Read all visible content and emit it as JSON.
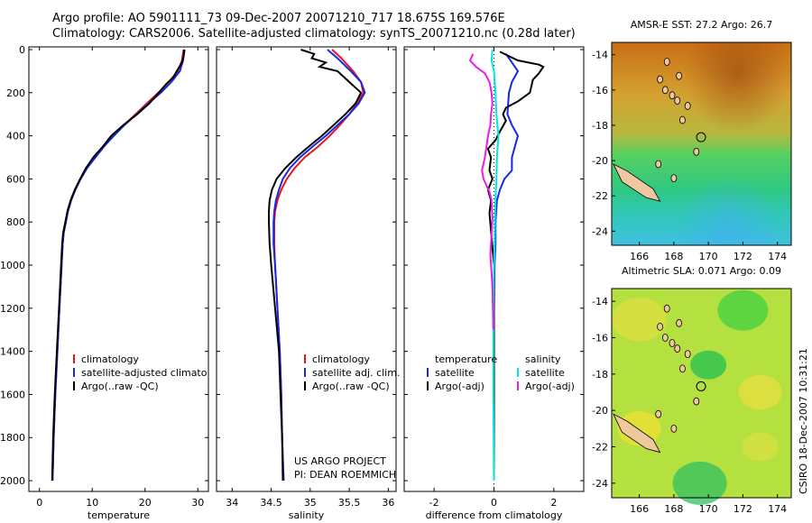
{
  "header": {
    "line1": "Argo profile: AO 5901111_73 09-Dec-2007 20071210_717 18.675S 169.576E",
    "line2": "Climatology: CARS2006. Satellite-adjusted climatology: synTS_20071210.nc (0.28d later)"
  },
  "timestamp": "CSIRO 18-Dec-2007 10:31:21",
  "project": {
    "line1": "US ARGO PROJECT",
    "line2": "PI: DEAN ROEMMICH"
  },
  "colors": {
    "red": "#e8141c",
    "blue": "#1428e6",
    "black": "#000000",
    "cyan": "#00e6e6",
    "magenta": "#e61ee6"
  },
  "chart_data": [
    {
      "type": "line",
      "xlabel": "temperature",
      "xlim": [
        -2,
        32
      ],
      "ylim": [
        2050,
        0
      ],
      "xticks": [
        0,
        10,
        20,
        30
      ],
      "yticks": [
        0,
        200,
        400,
        600,
        800,
        1000,
        1200,
        1400,
        1600,
        1800,
        2000
      ],
      "legend": [
        "climatology",
        "satellite-adjusted climatology",
        "Argo(..raw -QC)"
      ],
      "series": [
        {
          "name": "climatology",
          "color": "red",
          "points": [
            [
              27.3,
              0
            ],
            [
              27.0,
              50
            ],
            [
              26.2,
              100
            ],
            [
              24.5,
              150
            ],
            [
              22.5,
              200
            ],
            [
              20.3,
              250
            ],
            [
              18.2,
              300
            ],
            [
              16.0,
              350
            ],
            [
              14.0,
              400
            ],
            [
              12.2,
              450
            ],
            [
              10.6,
              500
            ],
            [
              9.0,
              550
            ],
            [
              7.8,
              600
            ],
            [
              6.8,
              650
            ],
            [
              6.0,
              700
            ],
            [
              5.4,
              750
            ],
            [
              5.0,
              800
            ],
            [
              4.6,
              850
            ],
            [
              4.4,
              900
            ],
            [
              4.2,
              1000
            ],
            [
              3.8,
              1200
            ],
            [
              3.4,
              1400
            ],
            [
              3.0,
              1600
            ],
            [
              2.7,
              1800
            ],
            [
              2.5,
              2000
            ]
          ]
        },
        {
          "name": "satellite-adjusted climatology",
          "color": "blue",
          "points": [
            [
              27.5,
              0
            ],
            [
              27.2,
              50
            ],
            [
              26.6,
              100
            ],
            [
              25.0,
              150
            ],
            [
              23.0,
              200
            ],
            [
              20.6,
              250
            ],
            [
              18.4,
              300
            ],
            [
              16.1,
              350
            ],
            [
              14.1,
              400
            ],
            [
              12.2,
              450
            ],
            [
              10.6,
              500
            ],
            [
              9.0,
              550
            ],
            [
              7.8,
              600
            ],
            [
              6.8,
              650
            ],
            [
              6.0,
              700
            ],
            [
              5.4,
              750
            ],
            [
              5.0,
              800
            ],
            [
              4.6,
              850
            ],
            [
              4.4,
              900
            ],
            [
              4.2,
              1000
            ],
            [
              3.8,
              1200
            ],
            [
              3.4,
              1400
            ],
            [
              3.0,
              1600
            ],
            [
              2.7,
              1800
            ],
            [
              2.5,
              2000
            ]
          ]
        },
        {
          "name": "Argo(..raw -QC)",
          "color": "black",
          "points": [
            [
              27.4,
              0
            ],
            [
              27.3,
              30
            ],
            [
              27.0,
              60
            ],
            [
              26.0,
              100
            ],
            [
              25.3,
              130
            ],
            [
              24.0,
              160
            ],
            [
              22.6,
              200
            ],
            [
              20.8,
              250
            ],
            [
              18.5,
              300
            ],
            [
              15.9,
              350
            ],
            [
              13.6,
              400
            ],
            [
              12.0,
              450
            ],
            [
              10.2,
              500
            ],
            [
              8.8,
              550
            ],
            [
              7.7,
              600
            ],
            [
              6.7,
              650
            ],
            [
              5.9,
              700
            ],
            [
              5.3,
              750
            ],
            [
              4.9,
              800
            ],
            [
              4.5,
              850
            ],
            [
              4.3,
              900
            ],
            [
              4.1,
              1000
            ],
            [
              3.7,
              1200
            ],
            [
              3.3,
              1400
            ],
            [
              2.9,
              1600
            ],
            [
              2.6,
              1800
            ],
            [
              2.4,
              2000
            ]
          ]
        }
      ]
    },
    {
      "type": "line",
      "xlabel": "salinity",
      "xlim": [
        33.8,
        36.1
      ],
      "ylim": [
        2050,
        0
      ],
      "xticks": [
        34,
        34.5,
        35,
        35.5,
        36
      ],
      "yticks": [
        0,
        200,
        400,
        600,
        800,
        1000,
        1200,
        1400,
        1600,
        1800,
        2000
      ],
      "legend": [
        "climatology",
        "satellite adj. clim.",
        "Argo(..raw -QC)"
      ],
      "series": [
        {
          "name": "climatology",
          "color": "red",
          "points": [
            [
              35.28,
              0
            ],
            [
              35.4,
              40
            ],
            [
              35.55,
              100
            ],
            [
              35.65,
              150
            ],
            [
              35.68,
              200
            ],
            [
              35.6,
              250
            ],
            [
              35.5,
              300
            ],
            [
              35.38,
              350
            ],
            [
              35.25,
              400
            ],
            [
              35.1,
              450
            ],
            [
              34.93,
              500
            ],
            [
              34.8,
              550
            ],
            [
              34.7,
              600
            ],
            [
              34.63,
              650
            ],
            [
              34.58,
              700
            ],
            [
              34.55,
              750
            ],
            [
              34.54,
              800
            ],
            [
              34.54,
              900
            ],
            [
              34.55,
              1000
            ],
            [
              34.58,
              1200
            ],
            [
              34.61,
              1400
            ],
            [
              34.63,
              1600
            ],
            [
              34.64,
              1800
            ],
            [
              34.66,
              2000
            ]
          ]
        },
        {
          "name": "satellite adj. clim.",
          "color": "blue",
          "points": [
            [
              35.22,
              0
            ],
            [
              35.35,
              40
            ],
            [
              35.52,
              100
            ],
            [
              35.65,
              150
            ],
            [
              35.7,
              200
            ],
            [
              35.62,
              250
            ],
            [
              35.5,
              300
            ],
            [
              35.35,
              350
            ],
            [
              35.2,
              400
            ],
            [
              35.03,
              450
            ],
            [
              34.87,
              500
            ],
            [
              34.74,
              550
            ],
            [
              34.65,
              600
            ],
            [
              34.6,
              650
            ],
            [
              34.56,
              700
            ],
            [
              34.54,
              750
            ],
            [
              34.53,
              800
            ],
            [
              34.53,
              900
            ],
            [
              34.55,
              1000
            ],
            [
              34.58,
              1200
            ],
            [
              34.61,
              1400
            ],
            [
              34.63,
              1600
            ],
            [
              34.64,
              1800
            ],
            [
              34.66,
              2000
            ]
          ]
        },
        {
          "name": "Argo(..raw -QC)",
          "color": "black",
          "points": [
            [
              34.88,
              0
            ],
            [
              35.05,
              20
            ],
            [
              35.02,
              40
            ],
            [
              35.2,
              60
            ],
            [
              35.12,
              80
            ],
            [
              35.35,
              100
            ],
            [
              35.5,
              150
            ],
            [
              35.65,
              200
            ],
            [
              35.58,
              250
            ],
            [
              35.45,
              300
            ],
            [
              35.3,
              350
            ],
            [
              35.15,
              400
            ],
            [
              34.98,
              450
            ],
            [
              34.82,
              500
            ],
            [
              34.68,
              550
            ],
            [
              34.57,
              600
            ],
            [
              34.51,
              650
            ],
            [
              34.48,
              700
            ],
            [
              34.47,
              750
            ],
            [
              34.47,
              800
            ],
            [
              34.48,
              900
            ],
            [
              34.5,
              1000
            ],
            [
              34.55,
              1200
            ],
            [
              34.6,
              1400
            ],
            [
              34.62,
              1600
            ],
            [
              34.64,
              1800
            ],
            [
              34.65,
              2000
            ]
          ]
        }
      ]
    },
    {
      "type": "line",
      "xlabel": "difference from climatology",
      "xlim": [
        -3,
        3
      ],
      "ylim": [
        2050,
        0
      ],
      "xticks": [
        -2,
        0,
        2
      ],
      "yticks": [
        0,
        200,
        400,
        600,
        800,
        1000,
        1200,
        1400,
        1600,
        1800,
        2000
      ],
      "legend_left_title": "temperature",
      "legend_right_title": "salinity",
      "legend": [
        "satellite",
        "Argo(-adj)",
        "satellite",
        "Argo(-adj)"
      ],
      "series": [
        {
          "name": "temperature satellite",
          "color": "blue",
          "points": [
            [
              0.4,
              20
            ],
            [
              0.6,
              60
            ],
            [
              0.8,
              100
            ],
            [
              0.6,
              150
            ],
            [
              0.5,
              200
            ],
            [
              0.45,
              300
            ],
            [
              0.6,
              350
            ],
            [
              0.8,
              400
            ],
            [
              0.6,
              500
            ],
            [
              0.6,
              560
            ],
            [
              0.35,
              600
            ],
            [
              0.2,
              650
            ],
            [
              0.1,
              700
            ],
            [
              0.05,
              800
            ],
            [
              0.05,
              900
            ],
            [
              0.02,
              1000
            ],
            [
              0.0,
              1200
            ],
            [
              0.0,
              2000
            ]
          ]
        },
        {
          "name": "temperature Argo(-adj)",
          "color": "black",
          "points": [
            [
              0.2,
              10
            ],
            [
              0.8,
              50
            ],
            [
              1.5,
              70
            ],
            [
              1.65,
              80
            ],
            [
              1.5,
              110
            ],
            [
              1.3,
              140
            ],
            [
              1.2,
              200
            ],
            [
              0.8,
              240
            ],
            [
              0.4,
              270
            ],
            [
              0.3,
              300
            ],
            [
              0.4,
              330
            ],
            [
              0.2,
              380
            ],
            [
              0.05,
              420
            ],
            [
              -0.2,
              460
            ],
            [
              -0.1,
              500
            ],
            [
              -0.15,
              560
            ],
            [
              -0.05,
              600
            ],
            [
              -0.2,
              650
            ],
            [
              -0.1,
              700
            ],
            [
              -0.15,
              760
            ],
            [
              -0.1,
              840
            ],
            [
              -0.05,
              920
            ],
            [
              0.0,
              1000
            ],
            [
              0.0,
              1200
            ],
            [
              0.0,
              2000
            ]
          ]
        },
        {
          "name": "salinity satellite",
          "color": "cyan",
          "points": [
            [
              -0.05,
              0
            ],
            [
              -0.08,
              50
            ],
            [
              0.0,
              100
            ],
            [
              0.05,
              200
            ],
            [
              0.08,
              300
            ],
            [
              0.15,
              400
            ],
            [
              0.1,
              500
            ],
            [
              0.08,
              600
            ],
            [
              0.05,
              700
            ],
            [
              0.03,
              800
            ],
            [
              0.02,
              900
            ],
            [
              0.0,
              1000
            ],
            [
              -0.02,
              1200
            ],
            [
              -0.02,
              1600
            ],
            [
              0.0,
              2000
            ]
          ]
        },
        {
          "name": "salinity Argo(-adj)",
          "color": "magenta",
          "points": [
            [
              -0.7,
              20
            ],
            [
              -0.8,
              50
            ],
            [
              -0.6,
              80
            ],
            [
              -0.3,
              110
            ],
            [
              -0.15,
              150
            ],
            [
              -0.08,
              200
            ],
            [
              -0.05,
              250
            ],
            [
              -0.1,
              300
            ],
            [
              -0.12,
              350
            ],
            [
              -0.2,
              400
            ],
            [
              -0.25,
              450
            ],
            [
              -0.3,
              500
            ],
            [
              -0.4,
              560
            ],
            [
              -0.35,
              600
            ],
            [
              -0.15,
              660
            ],
            [
              -0.08,
              700
            ],
            [
              -0.05,
              780
            ],
            [
              -0.08,
              860
            ],
            [
              -0.12,
              950
            ],
            [
              -0.05,
              1100
            ],
            [
              -0.02,
              1300
            ]
          ]
        }
      ]
    },
    {
      "type": "heatmap",
      "title": "AMSR-E SST: 27.2 Argo: 26.7",
      "xlim": [
        164.4,
        174.8
      ],
      "ylim": [
        -24.8,
        -13.3
      ],
      "xticks": [
        166,
        168,
        170,
        172,
        174
      ],
      "yticks": [
        -14,
        -16,
        -18,
        -20,
        -22,
        -24
      ],
      "colormap": "orange-north to green-cyan-south",
      "argo_lon": 169.576,
      "argo_lat": -18.675
    },
    {
      "type": "heatmap",
      "title": "Altimetric SLA: 0.071 Argo: 0.09",
      "xlim": [
        164.4,
        174.8
      ],
      "ylim": [
        -24.8,
        -13.3
      ],
      "xticks": [
        166,
        168,
        170,
        172,
        174
      ],
      "yticks": [
        -14,
        -16,
        -18,
        -20,
        -22,
        -24
      ],
      "colormap": "green-yellow",
      "argo_lon": 169.576,
      "argo_lat": -18.675
    }
  ]
}
